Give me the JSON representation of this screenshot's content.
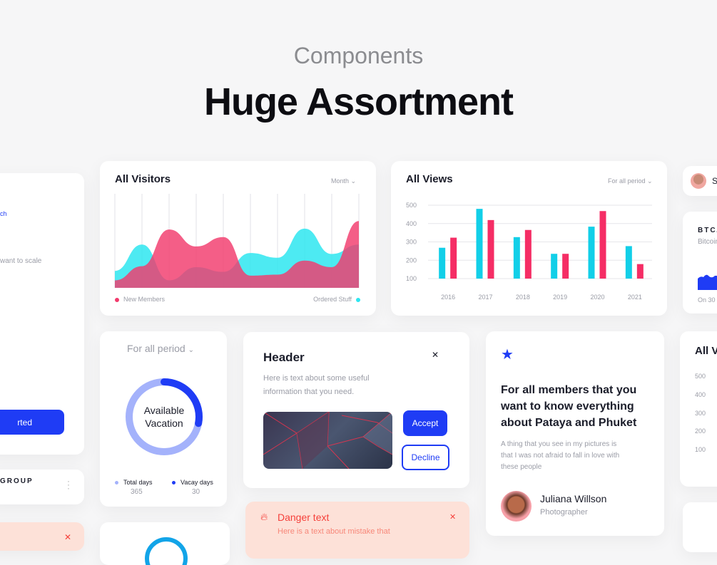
{
  "header": {
    "subtitle": "Components",
    "title": "Huge Assortment"
  },
  "left_card": {
    "link_fragment": "ch",
    "text_fragment": "want to scale",
    "button_fragment": "rted"
  },
  "group_card": {
    "label": "GROUP"
  },
  "visitors": {
    "title": "All Visitors",
    "period": "Month",
    "chart_data": {
      "type": "area",
      "title": "All Visitors",
      "x": [
        1,
        2,
        3,
        4,
        5,
        6,
        7,
        8,
        9,
        10
      ],
      "series": [
        {
          "name": "New Members",
          "color": "#f23a6c",
          "values": [
            8,
            23,
            62,
            44,
            54,
            13,
            14,
            29,
            22,
            71
          ]
        },
        {
          "name": "Ordered Stuff",
          "color": "#2ee6f0",
          "values": [
            18,
            46,
            8,
            22,
            17,
            37,
            32,
            63,
            36,
            46
          ]
        }
      ],
      "grid": "vertical",
      "legend": "bottom"
    },
    "legend": [
      "New Members",
      "Ordered Stuff"
    ]
  },
  "views": {
    "title": "All Views",
    "period": "For all period",
    "chart_data": {
      "type": "bar",
      "title": "All Views",
      "categories": [
        "2016",
        "2017",
        "2018",
        "2019",
        "2020",
        "2021"
      ],
      "series": [
        {
          "color": "#12cfe8",
          "values": [
            268,
            480,
            326,
            235,
            383,
            277
          ]
        },
        {
          "color": "#f52d65",
          "values": [
            323,
            419,
            365,
            235,
            468,
            179
          ]
        }
      ],
      "yticks": [
        "500",
        "400",
        "300",
        "200",
        "100"
      ],
      "ylim": [
        100,
        500
      ],
      "grid": "horizontal"
    }
  },
  "vacation": {
    "period": "For all period",
    "center_line1": "Available",
    "center_line2": "Vacation",
    "arc_fraction": 0.28,
    "total_label": "Total days",
    "total_value": "365",
    "vacay_label": "Vacay days",
    "vacay_value": "30"
  },
  "dialog": {
    "header": "Header",
    "text_line1": "Here is text about some useful",
    "text_line2": "information that you need.",
    "accept": "Accept",
    "decline": "Decline"
  },
  "danger": {
    "title": "Danger text",
    "text": "Here is a text about mistake that"
  },
  "quote": {
    "heading": "For all members that you want to know everything about Pataya and Phuket",
    "body": "A thing that you see in my pictures is that I was not afraid to fall in love with these people",
    "name": "Juliana Willson",
    "role": "Photographer"
  },
  "right_partial": {
    "user_initial": "S",
    "btc_title": "BTC/",
    "btc_sub": "Bitcoin",
    "btc_date": "On 30 .",
    "views_title": "All Vi",
    "yticks": [
      "500",
      "400",
      "300",
      "200",
      "100"
    ]
  },
  "colors": {
    "accent": "#1f3cf5",
    "pink": "#f23a6c",
    "cyan": "#2ee6f0",
    "danger_bg": "#fde1d8",
    "danger_text": "#f5403a"
  }
}
